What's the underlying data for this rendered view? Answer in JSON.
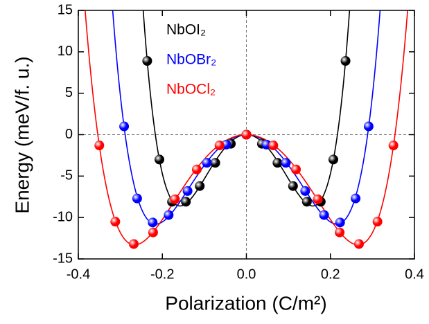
{
  "chart_data": {
    "type": "scatter-fit",
    "x_label": "Polarization (C/m²)",
    "y_label": "Energy (meV/f. u.)",
    "xlim": [
      -0.4,
      0.4
    ],
    "ylim": [
      -15,
      15
    ],
    "xticks": [
      -0.4,
      -0.2,
      {
        "value": 0,
        "label": "0.0"
      },
      0.2,
      0.4
    ],
    "yticks": [
      -15,
      -10,
      -5,
      0,
      5,
      10,
      15
    ],
    "zero_lines": true,
    "legend": "upper left",
    "series": [
      {
        "name": "NbOI₂",
        "color": "#000000",
        "x": [
          -0.236,
          -0.207,
          -0.177,
          -0.144,
          -0.111,
          -0.074,
          -0.037,
          0,
          0.037,
          0.074,
          0.111,
          0.144,
          0.177,
          0.207,
          0.236
        ],
        "values": [
          8.9,
          -3.0,
          -8.1,
          -8.1,
          -6.2,
          -3.4,
          -1.1,
          0,
          -1.1,
          -3.4,
          -6.2,
          -8.1,
          -8.1,
          -3.0,
          8.9
        ]
      },
      {
        "name": "NbOBr₂",
        "color": "#0000ff",
        "x": [
          -0.291,
          -0.26,
          -0.223,
          -0.185,
          -0.14,
          -0.094,
          -0.048,
          0,
          0.048,
          0.094,
          0.14,
          0.185,
          0.223,
          0.26,
          0.291
        ],
        "values": [
          1.0,
          -7.7,
          -10.6,
          -9.7,
          -6.8,
          -3.4,
          -1.2,
          0,
          -1.2,
          -3.4,
          -6.8,
          -9.7,
          -10.6,
          -7.7,
          1.0
        ]
      },
      {
        "name": "NbOCl₂",
        "color": "#ff0000",
        "x": [
          -0.35,
          -0.312,
          -0.268,
          -0.222,
          -0.17,
          -0.118,
          -0.064,
          0,
          0.064,
          0.118,
          0.17,
          0.222,
          0.268,
          0.312,
          0.35
        ],
        "values": [
          -1.3,
          -10.5,
          -13.2,
          -11.8,
          -7.8,
          -4.2,
          -1.3,
          0,
          -1.3,
          -4.2,
          -7.8,
          -11.8,
          -13.2,
          -10.5,
          -1.3
        ]
      }
    ]
  }
}
